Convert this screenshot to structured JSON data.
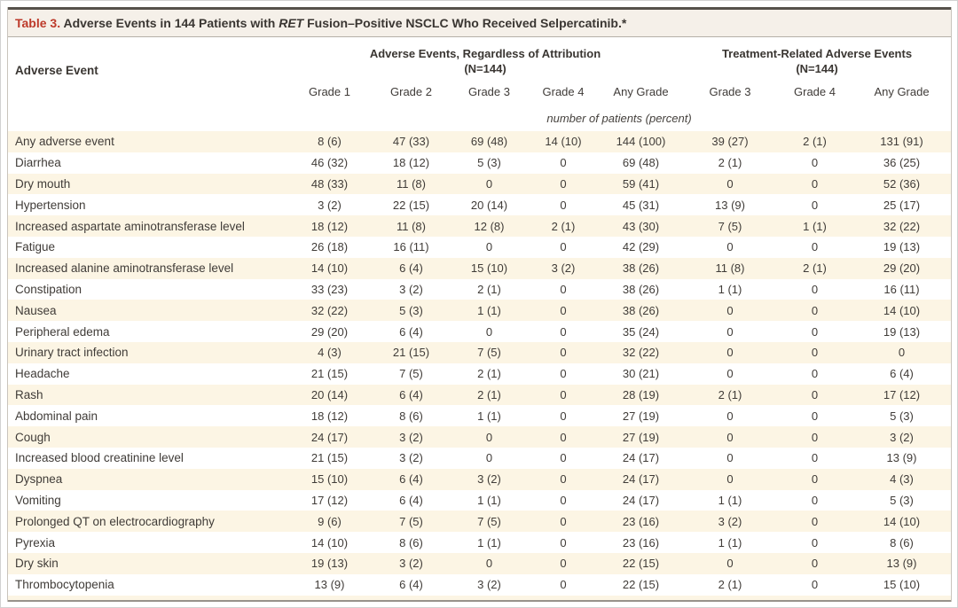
{
  "table": {
    "title": {
      "label": "Table 3.",
      "segment_1": " Adverse Events in 144 Patients with ",
      "gene": "RET",
      "segment_2": " Fusion–Positive NSCLC Who Received Selpercatinib.*"
    },
    "row_header": "Adverse Event",
    "groups": [
      {
        "title": "Adverse Events, Regardless of Attribution",
        "n_label": "(N=144)",
        "columns": [
          "Grade 1",
          "Grade 2",
          "Grade 3",
          "Grade 4",
          "Any Grade"
        ]
      },
      {
        "title": "Treatment-Related Adverse Events",
        "n_label": "(N=144)",
        "columns": [
          "Grade 3",
          "Grade 4",
          "Any Grade"
        ]
      }
    ],
    "units_note": "number of patients (percent)",
    "rows": [
      {
        "event": "Any adverse event",
        "values": [
          "8 (6)",
          "47 (33)",
          "69 (48)",
          "14 (10)",
          "144 (100)",
          "39 (27)",
          "2 (1)",
          "131 (91)"
        ]
      },
      {
        "event": "Diarrhea",
        "values": [
          "46 (32)",
          "18 (12)",
          "5 (3)",
          "0",
          "69 (48)",
          "2 (1)",
          "0",
          "36 (25)"
        ]
      },
      {
        "event": "Dry mouth",
        "values": [
          "48 (33)",
          "11 (8)",
          "0",
          "0",
          "59 (41)",
          "0",
          "0",
          "52 (36)"
        ]
      },
      {
        "event": "Hypertension",
        "values": [
          "3 (2)",
          "22 (15)",
          "20 (14)",
          "0",
          "45 (31)",
          "13 (9)",
          "0",
          "25 (17)"
        ]
      },
      {
        "event": "Increased aspartate aminotransferase level",
        "values": [
          "18 (12)",
          "11 (8)",
          "12 (8)",
          "2 (1)",
          "43 (30)",
          "7 (5)",
          "1 (1)",
          "32 (22)"
        ]
      },
      {
        "event": "Fatigue",
        "values": [
          "26 (18)",
          "16 (11)",
          "0",
          "0",
          "42 (29)",
          "0",
          "0",
          "19 (13)"
        ]
      },
      {
        "event": "Increased alanine aminotransferase level",
        "values": [
          "14 (10)",
          "6 (4)",
          "15 (10)",
          "3 (2)",
          "38 (26)",
          "11 (8)",
          "2 (1)",
          "29 (20)"
        ]
      },
      {
        "event": "Constipation",
        "values": [
          "33 (23)",
          "3 (2)",
          "2 (1)",
          "0",
          "38 (26)",
          "1 (1)",
          "0",
          "16 (11)"
        ]
      },
      {
        "event": "Nausea",
        "values": [
          "32 (22)",
          "5 (3)",
          "1 (1)",
          "0",
          "38 (26)",
          "0",
          "0",
          "14 (10)"
        ]
      },
      {
        "event": "Peripheral edema",
        "values": [
          "29 (20)",
          "6 (4)",
          "0",
          "0",
          "35 (24)",
          "0",
          "0",
          "19 (13)"
        ]
      },
      {
        "event": "Urinary tract infection",
        "values": [
          "4 (3)",
          "21 (15)",
          "7 (5)",
          "0",
          "32 (22)",
          "0",
          "0",
          "0"
        ]
      },
      {
        "event": "Headache",
        "values": [
          "21 (15)",
          "7 (5)",
          "2 (1)",
          "0",
          "30 (21)",
          "0",
          "0",
          "6 (4)"
        ]
      },
      {
        "event": "Rash",
        "values": [
          "20 (14)",
          "6 (4)",
          "2 (1)",
          "0",
          "28 (19)",
          "2 (1)",
          "0",
          "17 (12)"
        ]
      },
      {
        "event": "Abdominal pain",
        "values": [
          "18 (12)",
          "8 (6)",
          "1 (1)",
          "0",
          "27 (19)",
          "0",
          "0",
          "5 (3)"
        ]
      },
      {
        "event": "Cough",
        "values": [
          "24 (17)",
          "3 (2)",
          "0",
          "0",
          "27 (19)",
          "0",
          "0",
          "3 (2)"
        ]
      },
      {
        "event": "Increased blood creatinine level",
        "values": [
          "21 (15)",
          "3 (2)",
          "0",
          "0",
          "24 (17)",
          "0",
          "0",
          "13 (9)"
        ]
      },
      {
        "event": "Dyspnea",
        "values": [
          "15 (10)",
          "6 (4)",
          "3 (2)",
          "0",
          "24 (17)",
          "0",
          "0",
          "4 (3)"
        ]
      },
      {
        "event": "Vomiting",
        "values": [
          "17 (12)",
          "6 (4)",
          "1 (1)",
          "0",
          "24 (17)",
          "1 (1)",
          "0",
          "5 (3)"
        ]
      },
      {
        "event": "Prolonged QT on electrocardiography",
        "values": [
          "9 (6)",
          "7 (5)",
          "7 (5)",
          "0",
          "23 (16)",
          "3 (2)",
          "0",
          "14 (10)"
        ]
      },
      {
        "event": "Pyrexia",
        "values": [
          "14 (10)",
          "8 (6)",
          "1 (1)",
          "0",
          "23 (16)",
          "1 (1)",
          "0",
          "8 (6)"
        ]
      },
      {
        "event": "Dry skin",
        "values": [
          "19 (13)",
          "3 (2)",
          "0",
          "0",
          "22 (15)",
          "0",
          "0",
          "13 (9)"
        ]
      },
      {
        "event": "Thrombocytopenia",
        "values": [
          "13 (9)",
          "6 (4)",
          "3 (2)",
          "0",
          "22 (15)",
          "2 (1)",
          "0",
          "15 (10)"
        ]
      }
    ],
    "colors": {
      "accent_red": "#bd3a2a",
      "stripe_cream": "#fcf5e4",
      "title_bar_bg": "#f5f0e9",
      "text": "#403c38"
    }
  }
}
